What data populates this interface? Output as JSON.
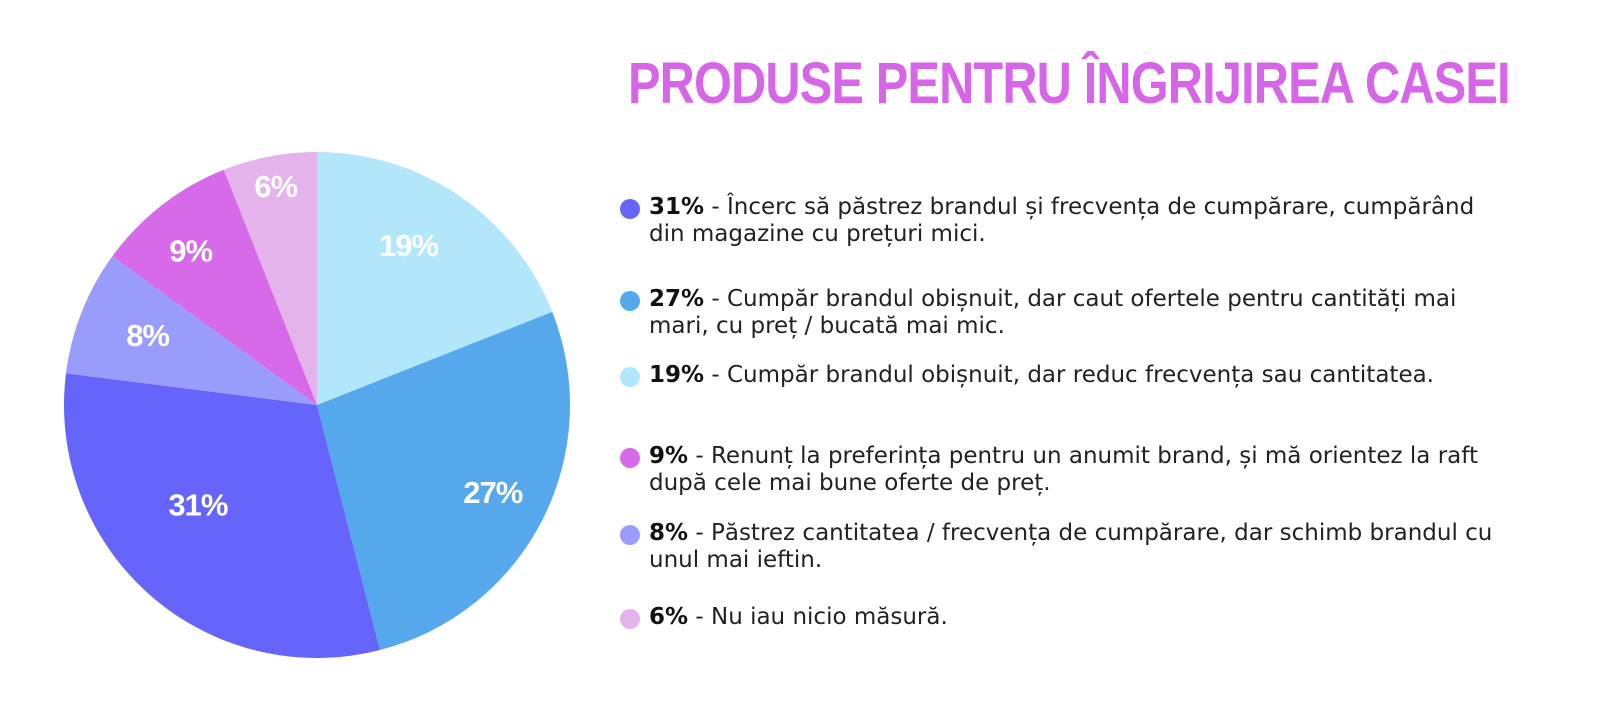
{
  "title": "PRODUSE PENTRU ÎNGRIJIREA CASEI",
  "chart_data": {
    "type": "pie",
    "title": "PRODUSE PENTRU ÎNGRIJIREA CASEI",
    "slices": [
      {
        "label": "19%",
        "value": 19,
        "color": "#b2e7fb",
        "description": "Cumpăr brandul obișnuit, dar reduc frecvența sau cantitatea."
      },
      {
        "label": "27%",
        "value": 27,
        "color": "#56a8ec",
        "description": "Cumpăr brandul obișnuit, dar caut ofertele pentru cantități mai mari, cu preț / bucată mai mic."
      },
      {
        "label": "31%",
        "value": 31,
        "color": "#6565fb",
        "description": "Încerc să păstrez brandul și frecvența de cumpărare, cumpărând din magazine cu prețuri mici."
      },
      {
        "label": "8%",
        "value": 8,
        "color": "#9a9cfb",
        "description": "Păstrez cantitatea / frecvența de cumpărare, dar schimb brandul cu unul mai ieftin."
      },
      {
        "label": "9%",
        "value": 9,
        "color": "#d66ae9",
        "description": "Renunț la preferința pentru un anumit brand, și mă orientez la raft după cele mai bune oferte de preț."
      },
      {
        "label": "6%",
        "value": 6,
        "color": "#e5b3eb",
        "description": "Nu iau nicio măsură."
      }
    ]
  },
  "legend": [
    {
      "pct": "31%",
      "text": " - Încerc să păstrez brandul și frecvența de cumpărare, cumpărând din magazine cu prețuri mici.",
      "color": "#6565fb"
    },
    {
      "pct": "27%",
      "text": " - Cumpăr brandul obișnuit, dar caut ofertele pentru cantități mai mari, cu preț / bucată mai mic.",
      "color": "#56a8ec"
    },
    {
      "pct": "19%",
      "text": " - Cumpăr brandul obișnuit, dar reduc frecvența sau cantitatea.",
      "color": "#b2e7fb"
    },
    {
      "pct": "9%",
      "text": " - Renunț la preferința pentru un anumit brand, și mă orientez la raft după cele mai bune oferte de preț.",
      "color": "#d66ae9"
    },
    {
      "pct": "8%",
      "text": " - Păstrez cantitatea / frecvența de cumpărare, dar schimb brandul cu unul mai ieftin.",
      "color": "#9a9cfb"
    },
    {
      "pct": "6%",
      "text": " - Nu iau nicio măsură.",
      "color": "#e5b3eb"
    }
  ]
}
